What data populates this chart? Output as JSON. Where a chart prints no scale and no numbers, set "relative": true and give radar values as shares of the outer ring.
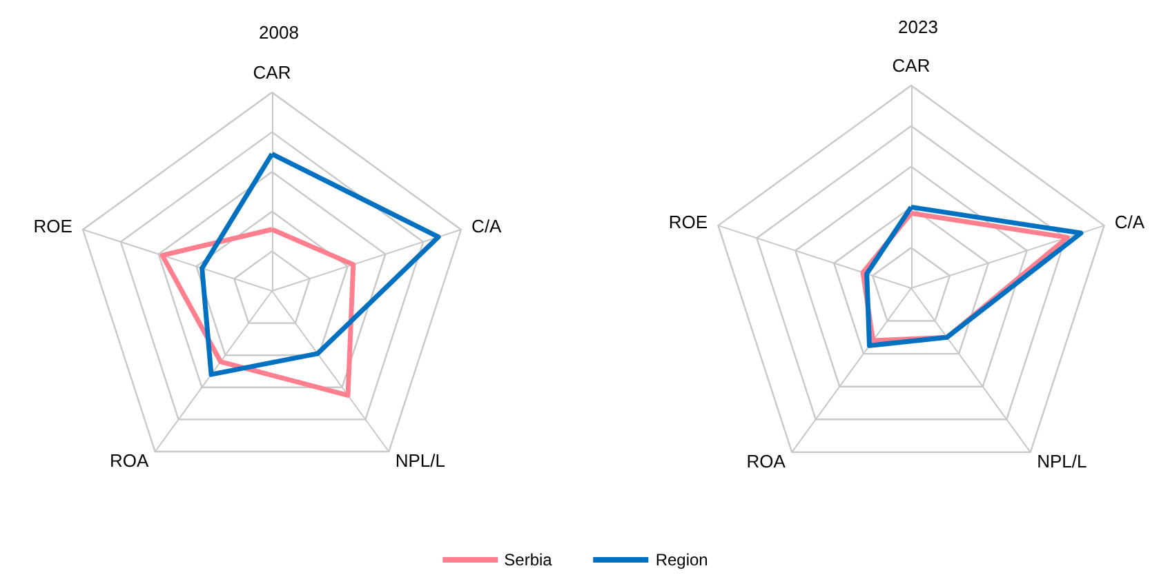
{
  "chart_data": [
    {
      "type": "radar",
      "title": "2008",
      "categories": [
        "CAR",
        "C/A",
        "NPL/L",
        "ROA",
        "ROE"
      ],
      "relative": true,
      "legend": "bottom",
      "series": [
        {
          "name": "Serbia",
          "color": "#ff7f8e",
          "values": [
            0.31,
            0.43,
            0.65,
            0.44,
            0.58
          ]
        },
        {
          "name": "Region",
          "color": "#0070c0",
          "values": [
            0.69,
            0.88,
            0.39,
            0.52,
            0.37
          ]
        }
      ]
    },
    {
      "type": "radar",
      "title": "2023",
      "categories": [
        "CAR",
        "C/A",
        "NPL/L",
        "ROA",
        "ROE"
      ],
      "relative": true,
      "series": [
        {
          "name": "Serbia",
          "color": "#ff7f8e",
          "values": [
            0.37,
            0.81,
            0.3,
            0.32,
            0.25
          ]
        },
        {
          "name": "Region",
          "color": "#0070c0",
          "values": [
            0.4,
            0.88,
            0.3,
            0.35,
            0.23
          ]
        }
      ]
    }
  ]
}
